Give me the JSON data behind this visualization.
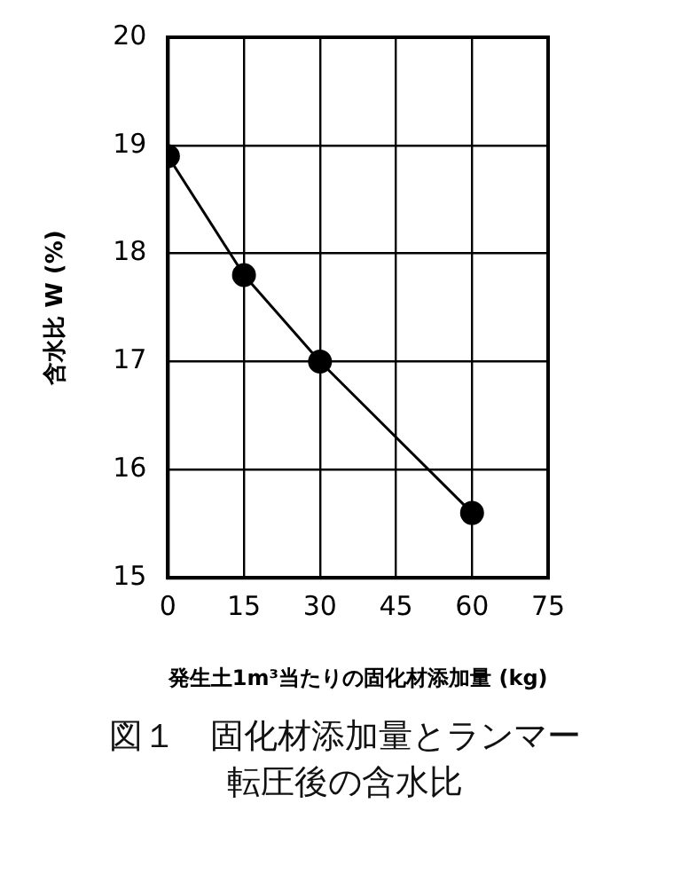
{
  "chart_data": {
    "type": "line",
    "title": "図１　固化材添加量とランマー転圧後の含水比",
    "xlabel": "発生土1m³当たりの固化材添加量 (kg)",
    "ylabel": "含水比 W (%)",
    "x": [
      0,
      15,
      30,
      60
    ],
    "series": [
      {
        "color": "#000000",
        "values": [
          18.9,
          17.8,
          17.0,
          15.6
        ]
      }
    ],
    "xlim": [
      0,
      75
    ],
    "xticks": [
      0,
      15,
      30,
      45,
      60,
      75
    ],
    "ylim": [
      15,
      20
    ],
    "yticks": [
      15,
      16,
      17,
      18,
      19,
      20
    ],
    "grid": true,
    "legend": false,
    "marker": "circle",
    "line_style": "solid"
  }
}
